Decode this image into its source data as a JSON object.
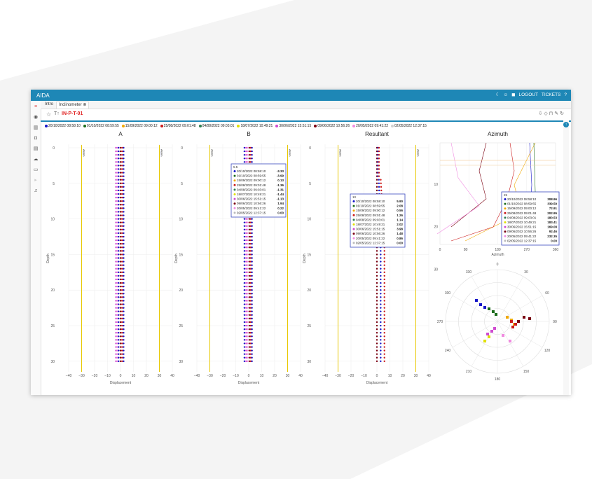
{
  "app": {
    "title": "AIDA"
  },
  "topbar": {
    "logout": "LOGOUT",
    "tickets": "TICKETS",
    "help": "?"
  },
  "tabs": [
    {
      "label": "Intro"
    },
    {
      "label": "Inclinometer"
    }
  ],
  "toolbar": {
    "instrument": "IN-P-T-01"
  },
  "legend": [
    {
      "label": "20/10/2022 08:58:10",
      "color": "#1515c8"
    },
    {
      "label": "01/10/2022 08:59:55",
      "color": "#1a6b1a"
    },
    {
      "label": "15/09/2022 09:00:12",
      "color": "#f0a800"
    },
    {
      "label": "25/08/2022 09:01:48",
      "color": "#cc1a1a"
    },
    {
      "label": "04/08/2022 09:03:01",
      "color": "#2e7d4f"
    },
    {
      "label": "18/07/2022 10:49:21",
      "color": "#e0e000"
    },
    {
      "label": "30/06/2022 15:51:15",
      "color": "#d04bd0"
    },
    {
      "label": "09/06/2022 10:56:26",
      "color": "#7a0010"
    },
    {
      "label": "20/05/2022 09:41:22",
      "color": "#f08ae0"
    },
    {
      "label": "02/05/2022 12:37:15",
      "color": "#d0d0d0"
    }
  ],
  "panels": [
    {
      "title": "A",
      "xlabel": "Displacement",
      "ylabel": "Depth",
      "xticks": [
        "−40",
        "−30",
        "−20",
        "−10",
        "0",
        "10",
        "20",
        "30",
        "40"
      ],
      "yticks": [
        "0",
        "5",
        "10",
        "15",
        "20",
        "25",
        "30"
      ],
      "alarm_label": "Alarm"
    },
    {
      "title": "B",
      "xlabel": "Displacement",
      "ylabel": "Depth",
      "xticks": [
        "−40",
        "−30",
        "−20",
        "−10",
        "0",
        "10",
        "20",
        "30",
        "40"
      ],
      "yticks": [
        "0",
        "5",
        "10",
        "15",
        "20",
        "25",
        "30"
      ],
      "alarm_label": "Alarm"
    },
    {
      "title": "Resultant",
      "xlabel": "Displacement",
      "ylabel": "Depth",
      "xticks": [
        "−40",
        "−30",
        "−20",
        "−10",
        "0",
        "10",
        "20",
        "30",
        "40"
      ],
      "yticks": [
        "0",
        "5",
        "10",
        "15",
        "20",
        "25",
        "30"
      ],
      "alarm_label": "Alarm"
    }
  ],
  "tooltip_b": {
    "header": "5.5",
    "rows": [
      {
        "date": "20/10/2022 08:58:10",
        "value": "-3.33",
        "color": "#1515c8"
      },
      {
        "date": "01/10/2022 08:59:55",
        "value": "-3.99",
        "color": "#1a6b1a"
      },
      {
        "date": "15/09/2022 09:00:12",
        "value": "0.13",
        "color": "#f0a800"
      },
      {
        "date": "25/08/2022 09:01:48",
        "value": "-1.36",
        "color": "#cc1a1a"
      },
      {
        "date": "04/08/2022 09:03:01",
        "value": "-1.31",
        "color": "#2e7d4f"
      },
      {
        "date": "18/07/2022 10:49:21",
        "value": "-1.44",
        "color": "#e0e000"
      },
      {
        "date": "30/06/2022 15:51:15",
        "value": "-1.13",
        "color": "#d04bd0"
      },
      {
        "date": "09/06/2022 10:56:26",
        "value": "1.94",
        "color": "#7a0010"
      },
      {
        "date": "20/05/2022 09:41:22",
        "value": "0.22",
        "color": "#f08ae0"
      },
      {
        "date": "02/05/2022 12:37:15",
        "value": "0.00",
        "color": "#bbbbbb"
      }
    ]
  },
  "tooltip_r": {
    "header": "10",
    "rows": [
      {
        "date": "20/10/2022 08:58:10",
        "value": "5.90",
        "color": "#1515c8"
      },
      {
        "date": "01/10/2022 08:59:55",
        "value": "2.08",
        "color": "#1a6b1a"
      },
      {
        "date": "15/09/2022 09:00:12",
        "value": "0.56",
        "color": "#f0a800"
      },
      {
        "date": "25/08/2022 09:01:48",
        "value": "1.26",
        "color": "#cc1a1a"
      },
      {
        "date": "04/08/2022 09:03:01",
        "value": "1.14",
        "color": "#2e7d4f"
      },
      {
        "date": "18/07/2022 10:49:21",
        "value": "2.02",
        "color": "#e0e000"
      },
      {
        "date": "30/06/2022 15:51:15",
        "value": "3.98",
        "color": "#d04bd0"
      },
      {
        "date": "09/06/2022 10:56:26",
        "value": "1.48",
        "color": "#7a0010"
      },
      {
        "date": "20/05/2022 09:41:22",
        "value": "0.86",
        "color": "#f08ae0"
      },
      {
        "date": "02/05/2022 12:37:15",
        "value": "0.00",
        "color": "#bbbbbb"
      }
    ]
  },
  "azimuth": {
    "title": "Azimuth",
    "xlabel": "Azimuth",
    "xticks": [
      "0",
      "80",
      "180",
      "270",
      "360"
    ],
    "yticks": [
      "10",
      "20",
      "30"
    ],
    "tooltip": {
      "header": "25",
      "rows": [
        {
          "date": "20/10/2022 08:58:10",
          "value": "308.96",
          "color": "#1515c8"
        },
        {
          "date": "01/10/2022 08:59:55",
          "value": "339.59",
          "color": "#1a6b1a"
        },
        {
          "date": "15/09/2022 09:00:12",
          "value": "72.91",
          "color": "#f0a800"
        },
        {
          "date": "25/08/2022 09:01:48",
          "value": "202.95",
          "color": "#cc1a1a"
        },
        {
          "date": "04/08/2022 09:03:01",
          "value": "180.53",
          "color": "#2e7d4f"
        },
        {
          "date": "18/07/2022 10:49:21",
          "value": "183.41",
          "color": "#e0e000"
        },
        {
          "date": "30/06/2022 15:51:15",
          "value": "169.08",
          "color": "#d04bd0"
        },
        {
          "date": "09/06/2022 10:56:26",
          "value": "92.46",
          "color": "#7a0010"
        },
        {
          "date": "20/05/2022 09:41:22",
          "value": "232.35",
          "color": "#f08ae0"
        },
        {
          "date": "02/05/2022 12:37:15",
          "value": "0.00",
          "color": "#bbbbbb"
        }
      ]
    }
  },
  "polar": {
    "angles": [
      "0",
      "30",
      "60",
      "90",
      "120",
      "150",
      "180",
      "210",
      "240",
      "270",
      "300",
      "330"
    ]
  },
  "chart_data": [
    {
      "type": "scatter",
      "title": "A",
      "xlabel": "Displacement",
      "ylabel": "Depth",
      "xlim": [
        -40,
        40
      ],
      "ylim": [
        0,
        31
      ],
      "alarm_lines": [
        -30,
        30
      ]
    },
    {
      "type": "scatter",
      "title": "B",
      "xlabel": "Displacement",
      "ylabel": "Depth",
      "xlim": [
        -40,
        40
      ],
      "ylim": [
        0,
        31
      ],
      "alarm_lines": [
        -30,
        30
      ]
    },
    {
      "type": "scatter",
      "title": "Resultant",
      "xlabel": "Displacement",
      "ylabel": "Depth",
      "xlim": [
        -40,
        40
      ],
      "ylim": [
        0,
        31
      ],
      "alarm_lines": [
        -30,
        30
      ]
    },
    {
      "type": "line",
      "title": "Azimuth",
      "xlabel": "Azimuth",
      "xlim": [
        0,
        360
      ],
      "ylim": [
        0,
        31
      ]
    }
  ]
}
